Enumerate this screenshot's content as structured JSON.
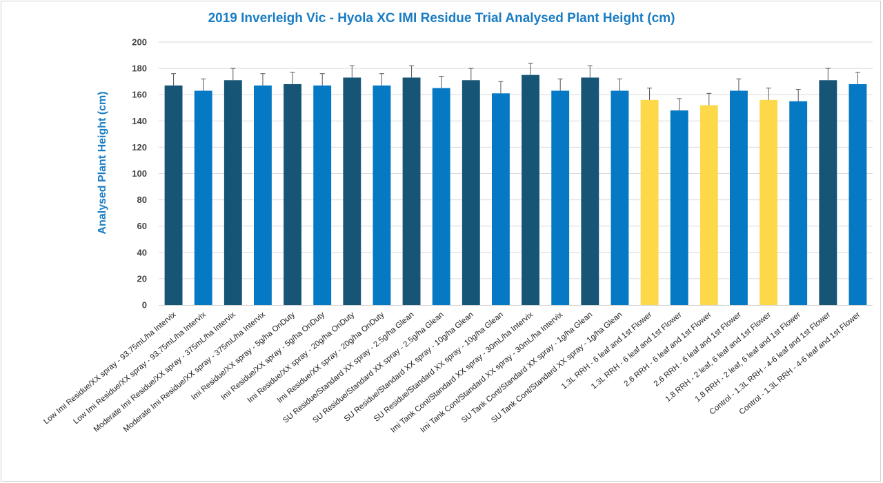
{
  "chart_data": {
    "type": "bar",
    "title": "2019 Inverleigh Vic - Hyola XC IMI Residue Trial Analysed Plant Height (cm)",
    "xlabel": "",
    "ylabel": "Analysed Plant Height (cm)",
    "ylim": [
      0,
      200
    ],
    "yticks": [
      0,
      20,
      40,
      60,
      80,
      100,
      120,
      140,
      160,
      180,
      200
    ],
    "grid": true,
    "legend": "none",
    "categories": [
      "Low Imi Residue/XX spray - 93.75mL/ha Intervix",
      "Low Imi Residue/XX spray - 93.75mL/ha Intervix",
      "Moderate Imi Residue/XX spray - 375mL/ha Intervix",
      "Moderate Imi Residue/XX spray - 375mL/ha Intervix",
      "Imi Residue/XX spray - 5g/ha OnDuty",
      "Imi Residue/XX spray - 5g/ha OnDuty",
      "Imi Residue/XX spray - 20g/ha OnDuty",
      "Imi Residue/XX spray - 20g/ha OnDuty",
      "SU Residue/Standard XX spray - 2.5g/ha Glean",
      "SU Residue/Standard XX spray - 2.5g/ha Glean",
      "SU Residue/Standard XX spray - 10g/ha Glean",
      "SU Residue/Standard XX spray - 10g/ha Glean",
      "Imi Tank Cont/Standard XX spray - 30mL/ha Intervix",
      "Imi Tank Cont/Standard XX spray - 30mL/ha Intervix",
      "SU Tank Cont/Standard XX spray - 1g/ha Glean",
      "SU Tank Cont/Standard XX spray - 1g/ha Glean",
      "1.3L RRH - 6 leaf and 1st Flower",
      "1.3L RRH - 6 leaf and 1st Flower",
      "2.6 RRH - 6 leaf and 1st Flower",
      "2.6 RRH - 6 leaf and 1st Flower",
      "1.8 RRH - 2 leaf, 6 leaf and 1st Flower",
      "1.8 RRH - 2 leaf, 6 leaf and 1st Flower",
      "Control - 1.3L RRH - 4-6 leaf and 1st Flower",
      "Control - 1.3L RRH - 4-6 leaf and 1st Flower"
    ],
    "values": [
      167,
      163,
      171,
      167,
      168,
      167,
      173,
      167,
      173,
      165,
      171,
      161,
      175,
      163,
      173,
      163,
      156,
      148,
      152,
      163,
      156,
      155,
      171,
      168
    ],
    "error": [
      9,
      9,
      9,
      9,
      9,
      9,
      9,
      9,
      9,
      9,
      9,
      9,
      9,
      9,
      9,
      9,
      9,
      9,
      9,
      9,
      9,
      9,
      9,
      9
    ],
    "bar_colors": [
      "#175577",
      "#0579c4",
      "#175577",
      "#0579c4",
      "#175577",
      "#0579c4",
      "#175577",
      "#0579c4",
      "#175577",
      "#0579c4",
      "#175577",
      "#0579c4",
      "#175577",
      "#0579c4",
      "#175577",
      "#0579c4",
      "#fdd94a",
      "#0579c4",
      "#fdd94a",
      "#0579c4",
      "#fdd94a",
      "#0579c4",
      "#175577",
      "#0579c4"
    ],
    "colors": {
      "title": "#1a7dc4",
      "dark_blue": "#175577",
      "blue": "#0579c4",
      "yellow": "#fdd94a",
      "grid": "#d9d9d9"
    }
  }
}
